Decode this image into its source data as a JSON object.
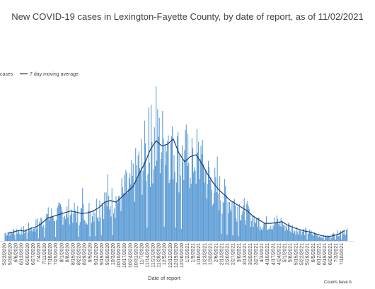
{
  "chart_data": {
    "type": "bar",
    "title": "New COVID-19 cases in Lexington-Fayette County, by date of report, as of 11/02/2021",
    "xlabel": "Date of report",
    "ylabel": "",
    "note": "Counts have b",
    "legend": {
      "placement": "top-left",
      "entries": [
        "cases",
        "7 day moving average"
      ]
    },
    "grid": false,
    "ylim": [
      0,
      450
    ],
    "series": [
      {
        "name": "cases",
        "type": "bar",
        "color": "#5b9bd5"
      },
      {
        "name": "7 day moving average",
        "type": "line",
        "color": "#1f3864"
      }
    ],
    "x_tick_labels": [
      "5/23/2020",
      "5/30/2020",
      "6/6/2020",
      "6/13/2020",
      "6/20/2020",
      "6/27/2020",
      "7/4/2020",
      "7/11/2020",
      "7/18/2020",
      "7/25/2020",
      "8/1/2020",
      "8/8/2020",
      "8/15/2020",
      "8/22/2020",
      "8/29/2020",
      "9/5/2020",
      "9/12/2020",
      "9/19/2020",
      "9/26/2020",
      "10/3/2020",
      "10/10/2020",
      "10/17/2020",
      "10/24/2020",
      "10/31/2020",
      "11/7/2020",
      "11/14/2020",
      "11/21/2020",
      "11/28/2020",
      "12/5/2020",
      "12/12/2020",
      "12/19/2020",
      "12/26/2020",
      "1/2/2021",
      "1/9/2021",
      "1/16/2021",
      "1/23/2021",
      "1/30/2021",
      "2/6/2021",
      "2/13/2021",
      "2/20/2021",
      "2/27/2021",
      "3/6/2021",
      "3/13/2021",
      "3/20/2021",
      "3/27/2021",
      "4/3/2021",
      "4/10/2021",
      "4/17/2021",
      "4/24/2021",
      "5/1/2021",
      "5/8/2021",
      "5/15/2021",
      "5/22/2021",
      "5/29/2021",
      "6/5/2021",
      "6/12/2021",
      "6/19/2021",
      "6/26/2021",
      "7/3/2021",
      "7/10/2021"
    ],
    "weekly_avg": [
      22,
      25,
      30,
      28,
      35,
      40,
      50,
      65,
      70,
      75,
      80,
      85,
      82,
      78,
      80,
      85,
      95,
      110,
      115,
      110,
      125,
      140,
      155,
      190,
      220,
      260,
      285,
      270,
      275,
      290,
      250,
      225,
      240,
      245,
      220,
      190,
      165,
      145,
      130,
      115,
      105,
      95,
      85,
      70,
      60,
      50,
      50,
      52,
      55,
      45,
      38,
      33,
      28,
      25,
      20,
      15,
      12,
      15,
      20,
      30
    ]
  }
}
